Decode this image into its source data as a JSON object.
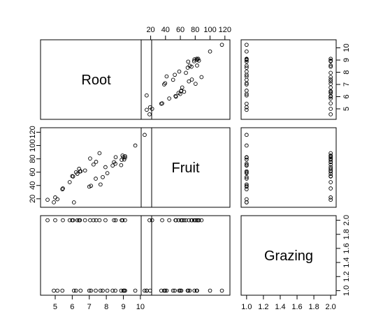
{
  "chart_data": {
    "type": "scatter",
    "variables": [
      "Root",
      "Fruit",
      "Grazing"
    ],
    "axes": {
      "Root": {
        "range": [
          4.4,
          10.4
        ],
        "ticks": [
          "5",
          "6",
          "7",
          "8",
          "9",
          "10"
        ]
      },
      "Fruit": {
        "range": [
          12,
          122
        ],
        "ticks": [
          "20",
          "40",
          "60",
          "80",
          "100",
          "120"
        ]
      },
      "Grazing": {
        "range": [
          0.98,
          2.02
        ],
        "ticks": [
          "1.0",
          "1.2",
          "1.4",
          "1.6",
          "1.8",
          "2.0"
        ]
      }
    },
    "tick_sides": {
      "Root": {
        "x": "bottom",
        "y": "right"
      },
      "Fruit": {
        "x": "top",
        "y": "left"
      },
      "Grazing": {
        "x": "bottom",
        "y": "right"
      }
    },
    "points": [
      {
        "Root": 6.22,
        "Fruit": 59.8,
        "Grazing": 1
      },
      {
        "Root": 6.49,
        "Fruit": 61.3,
        "Grazing": 1
      },
      {
        "Root": 4.92,
        "Fruit": 14.7,
        "Grazing": 1
      },
      {
        "Root": 5.13,
        "Fruit": 19.3,
        "Grazing": 1
      },
      {
        "Root": 5.42,
        "Fruit": 34.3,
        "Grazing": 1
      },
      {
        "Root": 6.1,
        "Fruit": 14.6,
        "Grazing": 1
      },
      {
        "Root": 7.0,
        "Fruit": 38.2,
        "Grazing": 1
      },
      {
        "Root": 7.1,
        "Fruit": 39.5,
        "Grazing": 1
      },
      {
        "Root": 7.38,
        "Fruit": 50.2,
        "Grazing": 1
      },
      {
        "Root": 7.66,
        "Fruit": 41.5,
        "Grazing": 1
      },
      {
        "Root": 7.79,
        "Fruit": 52.5,
        "Grazing": 1
      },
      {
        "Root": 8.06,
        "Fruit": 58.5,
        "Grazing": 1
      },
      {
        "Root": 8.37,
        "Fruit": 69.9,
        "Grazing": 1
      },
      {
        "Root": 8.53,
        "Fruit": 72.6,
        "Grazing": 1
      },
      {
        "Root": 8.87,
        "Fruit": 70.5,
        "Grazing": 1
      },
      {
        "Root": 9.0,
        "Fruit": 82.5,
        "Grazing": 1
      },
      {
        "Root": 9.05,
        "Fruit": 79.0,
        "Grazing": 1
      },
      {
        "Root": 9.1,
        "Fruit": 82.0,
        "Grazing": 1
      },
      {
        "Root": 9.7,
        "Fruit": 100.0,
        "Grazing": 1
      },
      {
        "Root": 10.25,
        "Fruit": 116.0,
        "Grazing": 1
      },
      {
        "Root": 4.55,
        "Fruit": 18.5,
        "Grazing": 2
      },
      {
        "Root": 5.0,
        "Fruit": 22.0,
        "Grazing": 2
      },
      {
        "Root": 5.45,
        "Fruit": 35.5,
        "Grazing": 2
      },
      {
        "Root": 5.85,
        "Fruit": 45.0,
        "Grazing": 2
      },
      {
        "Root": 6.0,
        "Fruit": 54.0,
        "Grazing": 2
      },
      {
        "Root": 6.05,
        "Fruit": 53.5,
        "Grazing": 2
      },
      {
        "Root": 6.3,
        "Fruit": 57.5,
        "Grazing": 2
      },
      {
        "Root": 6.4,
        "Fruit": 65.0,
        "Grazing": 2
      },
      {
        "Root": 6.45,
        "Fruit": 61.0,
        "Grazing": 2
      },
      {
        "Root": 6.75,
        "Fruit": 62.5,
        "Grazing": 2
      },
      {
        "Root": 7.05,
        "Fruit": 80.5,
        "Grazing": 2
      },
      {
        "Root": 7.25,
        "Fruit": 71.5,
        "Grazing": 2
      },
      {
        "Root": 7.4,
        "Fruit": 75.5,
        "Grazing": 2
      },
      {
        "Root": 7.6,
        "Fruit": 88.5,
        "Grazing": 2
      },
      {
        "Root": 7.95,
        "Fruit": 67.5,
        "Grazing": 2
      },
      {
        "Root": 8.45,
        "Fruit": 75.0,
        "Grazing": 2
      },
      {
        "Root": 8.55,
        "Fruit": 82.5,
        "Grazing": 2
      },
      {
        "Root": 8.9,
        "Fruit": 78.5,
        "Grazing": 2
      },
      {
        "Root": 8.95,
        "Fruit": 85.0,
        "Grazing": 2
      },
      {
        "Root": 9.1,
        "Fruit": 84.0,
        "Grazing": 2
      }
    ]
  }
}
